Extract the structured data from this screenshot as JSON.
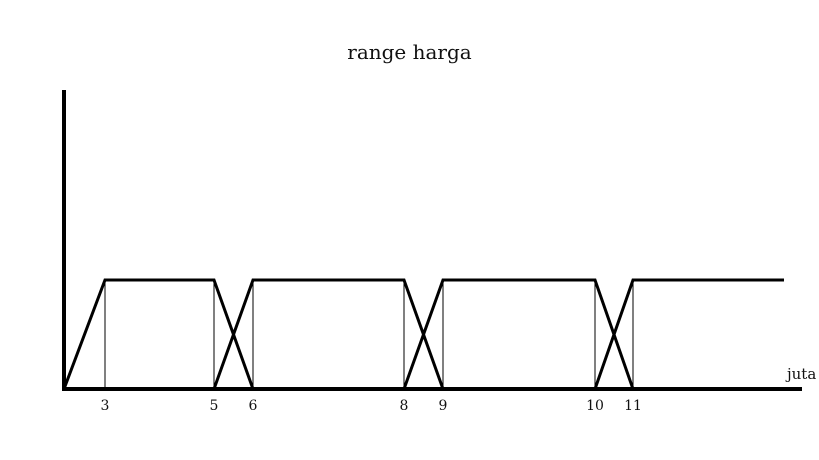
{
  "title": "range harga",
  "x_unit": "juta",
  "ticks": [
    "3",
    "5",
    "6",
    "8",
    "9",
    "10",
    "11"
  ],
  "sets": [
    {
      "points": [
        [
          0,
          0
        ],
        [
          3,
          1
        ],
        [
          5,
          1
        ],
        [
          6,
          0
        ]
      ]
    },
    {
      "points": [
        [
          5,
          0
        ],
        [
          6,
          1
        ],
        [
          8,
          1
        ],
        [
          9,
          0
        ]
      ]
    },
    {
      "points": [
        [
          8,
          0
        ],
        [
          9,
          1
        ],
        [
          10,
          1
        ],
        [
          11,
          0
        ]
      ]
    },
    {
      "points": [
        [
          10,
          0
        ],
        [
          11,
          1
        ],
        [
          15,
          1
        ]
      ]
    }
  ],
  "guide_lines_at": [
    3,
    5,
    6,
    8,
    9,
    10,
    11
  ]
}
